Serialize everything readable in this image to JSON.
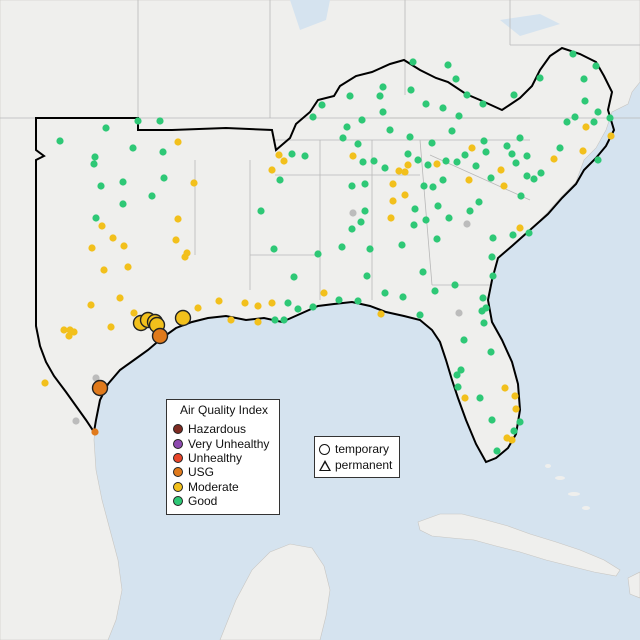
{
  "colors": {
    "water": "#d5e3ef",
    "land": "#efefed",
    "land_out": "#e4e2df",
    "state_line": "#b5b5b5",
    "region_border": "#000000",
    "hazardous": "#7e2b22",
    "very_unhealthy": "#8e4ab0",
    "unhealthy": "#e8452a",
    "usg": "#e07a1c",
    "moderate": "#f2c01c",
    "good": "#2ec876",
    "no_data": "#bcbcbc"
  },
  "legend": {
    "title": "Air Quality Index",
    "categories": [
      {
        "key": "hazardous",
        "label": "Hazardous"
      },
      {
        "key": "very_unhealthy",
        "label": "Very Unhealthy"
      },
      {
        "key": "unhealthy",
        "label": "Unhealthy"
      },
      {
        "key": "usg",
        "label": "USG"
      },
      {
        "key": "moderate",
        "label": "Moderate"
      },
      {
        "key": "good",
        "label": "Good"
      }
    ]
  },
  "monitor_types": {
    "temporary": "temporary",
    "permanent": "permanent"
  }
}
